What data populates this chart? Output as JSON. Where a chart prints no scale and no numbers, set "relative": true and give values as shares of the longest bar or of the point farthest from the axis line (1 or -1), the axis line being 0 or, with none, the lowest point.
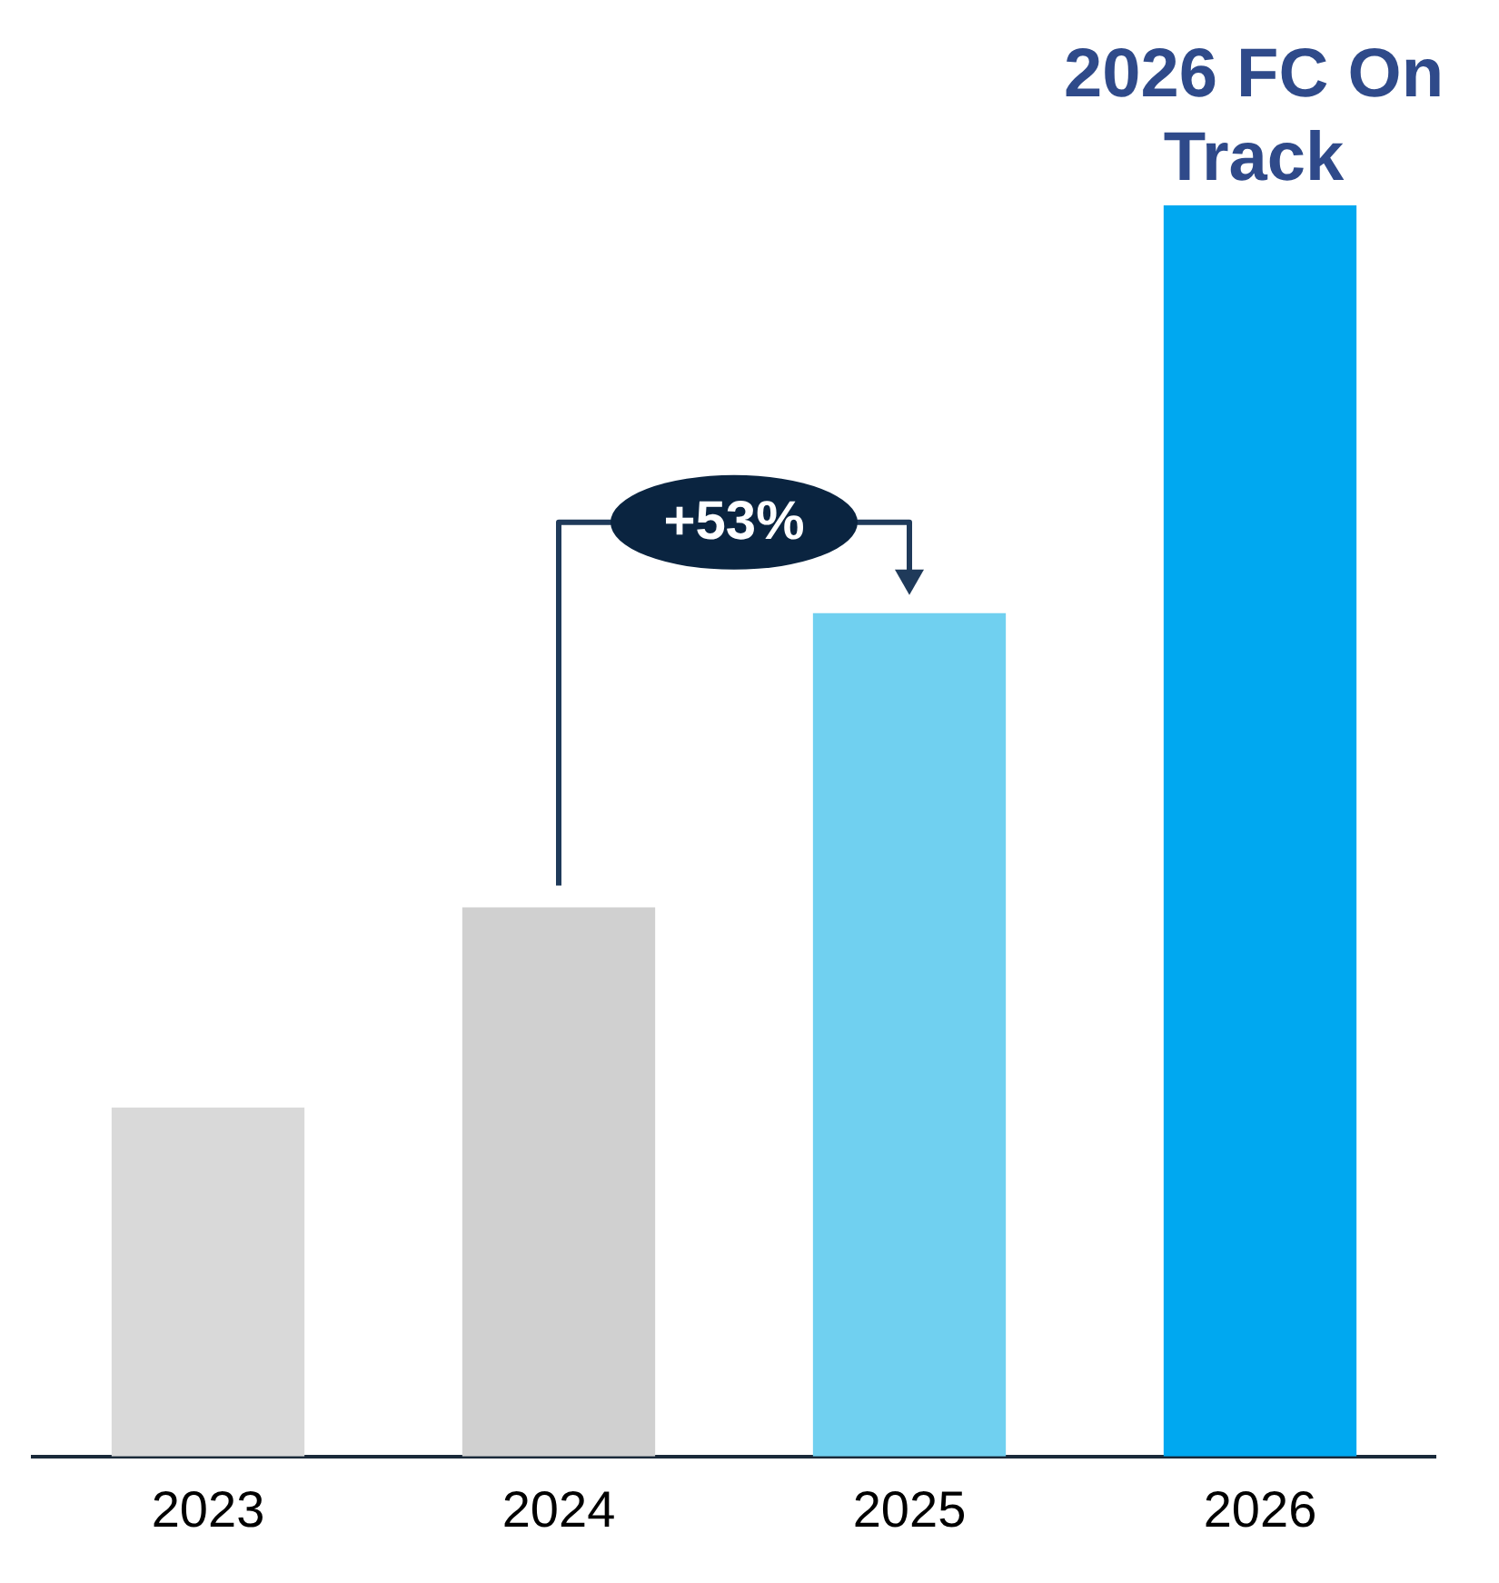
{
  "chart_data": {
    "type": "bar",
    "relative": true,
    "categories": [
      "2023",
      "2024",
      "2025",
      "2026"
    ],
    "values": [
      0.279,
      0.439,
      0.674,
      1
    ],
    "colors": [
      "#d9d9d9",
      "#d0d0d0",
      "#70d0f0",
      "#00a8f0"
    ],
    "annotations": [
      "+53%",
      {
        "text": "2026 FC On Track",
        "x": "2026",
        "y": 1
      }
    ],
    "grid": false,
    "legend": false
  }
}
